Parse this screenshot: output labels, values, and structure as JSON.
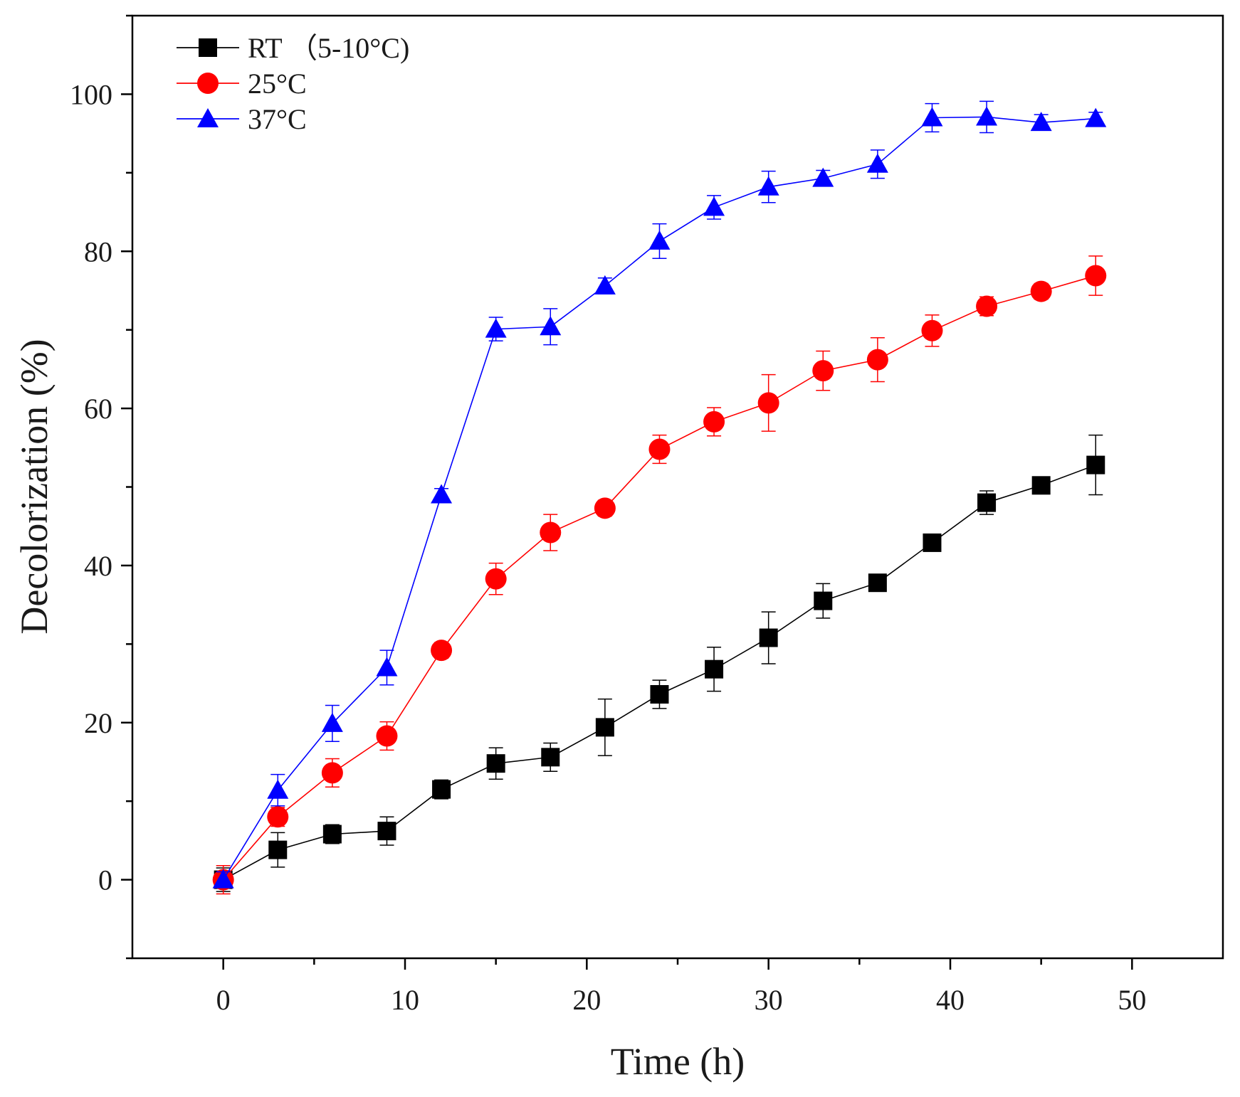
{
  "chart_data": {
    "type": "line",
    "title": "",
    "xlabel": "Time (h)",
    "ylabel": "Decolorization (%)",
    "xlim": [
      -5,
      55
    ],
    "ylim": [
      -10,
      110
    ],
    "xticks": [
      0,
      10,
      20,
      30,
      40,
      50
    ],
    "yticks": [
      0,
      20,
      40,
      60,
      80,
      100
    ],
    "grid": false,
    "legend_position": "top-left",
    "x": [
      0,
      3,
      6,
      9,
      12,
      15,
      18,
      21,
      24,
      27,
      30,
      33,
      36,
      39,
      42,
      45,
      48
    ],
    "series": [
      {
        "name": "RT  （5-10°C)",
        "color": "#000000",
        "marker": "square",
        "values": [
          0,
          3.8,
          5.8,
          6.2,
          11.5,
          14.8,
          15.6,
          19.4,
          23.6,
          26.8,
          30.8,
          35.5,
          37.8,
          42.9,
          48.0,
          50.2,
          52.8
        ],
        "errors": [
          1.5,
          2.2,
          1.2,
          1.8,
          1.2,
          2.0,
          1.8,
          3.6,
          1.8,
          2.8,
          3.3,
          2.2,
          1.0,
          1.0,
          1.5,
          0.8,
          3.8
        ]
      },
      {
        "name": "25°C",
        "color": "#ff0000",
        "marker": "circle",
        "values": [
          0,
          8.0,
          13.6,
          18.3,
          29.2,
          38.3,
          44.2,
          47.3,
          54.8,
          58.3,
          60.7,
          64.8,
          66.2,
          69.9,
          73.0,
          74.9,
          76.9
        ],
        "errors": [
          1.8,
          1.2,
          1.8,
          1.8,
          1.0,
          2.0,
          2.3,
          1.0,
          1.8,
          1.8,
          3.6,
          2.5,
          2.8,
          2.0,
          1.2,
          1.0,
          2.5
        ]
      },
      {
        "name": "37°C",
        "color": "#0000ff",
        "marker": "triangle",
        "values": [
          0,
          11.4,
          19.9,
          27.0,
          49.0,
          70.1,
          70.4,
          75.6,
          81.3,
          85.6,
          88.2,
          89.3,
          91.1,
          97.0,
          97.1,
          96.4,
          96.9
        ],
        "errors": [
          1.0,
          2.0,
          2.3,
          2.2,
          0.8,
          1.5,
          2.3,
          1.0,
          2.2,
          1.5,
          2.0,
          1.0,
          1.8,
          1.8,
          2.0,
          1.0,
          0.8
        ]
      }
    ]
  }
}
